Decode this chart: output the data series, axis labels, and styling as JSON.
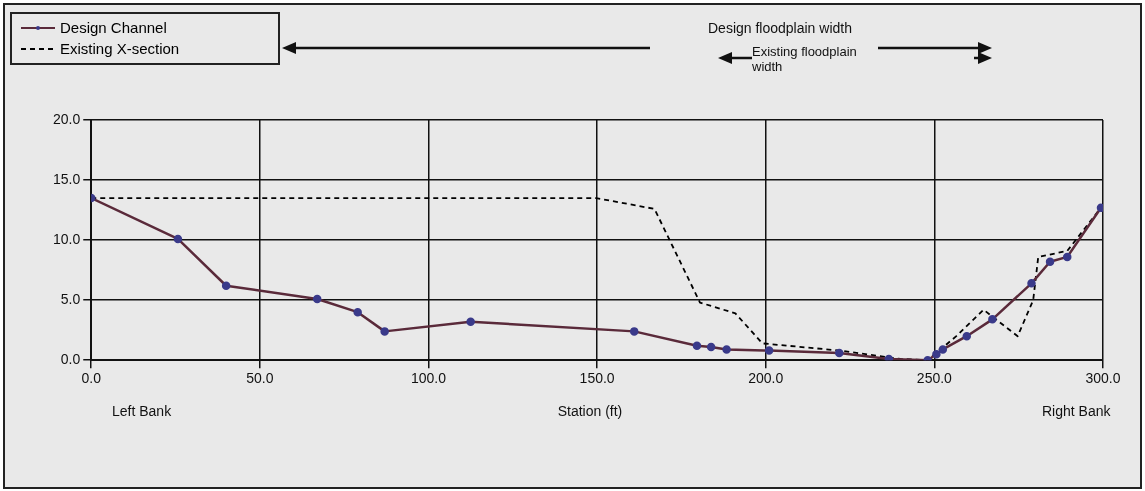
{
  "chart_data": {
    "type": "line",
    "xlabel": "Station (ft)",
    "xlim": [
      0,
      300
    ],
    "xticks": [
      {
        "value": 0,
        "label": "0.0"
      },
      {
        "value": 50,
        "label": "50.0"
      },
      {
        "value": 100,
        "label": "100.0"
      },
      {
        "value": 150,
        "label": "150.0"
      },
      {
        "value": 200,
        "label": "200.0"
      },
      {
        "value": 250,
        "label": "250.0"
      },
      {
        "value": 300,
        "label": "300.0"
      }
    ],
    "ylim": [
      0,
      20
    ],
    "yticks": [
      {
        "value": 0,
        "label": "0.0"
      },
      {
        "value": 5,
        "label": "5.0"
      },
      {
        "value": 10,
        "label": "10.0"
      },
      {
        "value": 15,
        "label": "15.0"
      },
      {
        "value": 20,
        "label": "20.0"
      }
    ],
    "grid": true,
    "legend": "top left",
    "annotations": [
      "Design floodplain width",
      "Existing floodplain width",
      "Left Bank",
      "Right Bank"
    ],
    "series": [
      {
        "name": "Design Channel",
        "color": "#5a2a3a",
        "marker": "circle",
        "line_style": "solid",
        "x": [
          0,
          25.7,
          40,
          67,
          79,
          87,
          112.5,
          161,
          179.6,
          183.8,
          188.4,
          201,
          221.8,
          236.5,
          248,
          250.6,
          252.5,
          259.6,
          267.2,
          278.8,
          284.3,
          289.4,
          299.4
        ],
        "values": [
          13.5,
          10.1,
          6.2,
          5.1,
          4.0,
          2.4,
          3.2,
          2.4,
          1.2,
          1.1,
          0.9,
          0.8,
          0.6,
          0.1,
          0,
          0.5,
          0.9,
          2.0,
          3.4,
          6.4,
          8.2,
          8.6,
          12.7
        ]
      },
      {
        "name": "Existing X-section",
        "color": "#000000",
        "marker": "none",
        "line_style": "dashed",
        "x": [
          0,
          149.7,
          167,
          180.5,
          191,
          199,
          222,
          240,
          248,
          256.5,
          264.6,
          274.7,
          279.3,
          280.8,
          289.4,
          299.4
        ],
        "values": [
          13.5,
          13.5,
          12.6,
          4.8,
          3.9,
          1.4,
          0.8,
          0.1,
          0,
          2.0,
          4.2,
          2.0,
          5.0,
          8.6,
          9.1,
          12.7
        ]
      }
    ]
  }
}
